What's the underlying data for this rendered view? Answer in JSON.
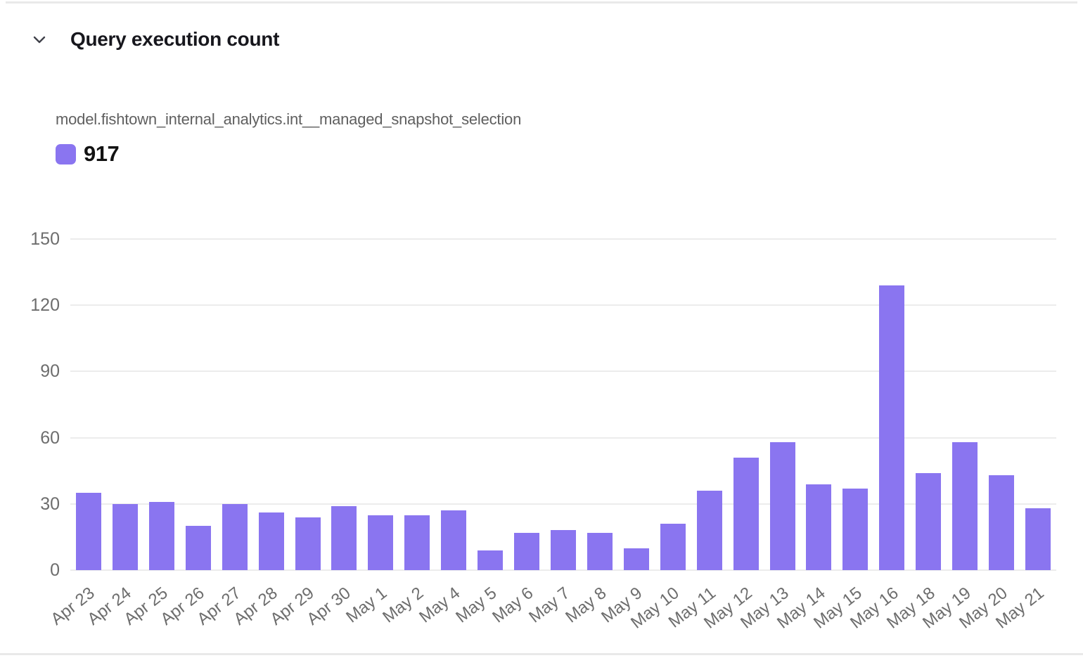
{
  "header": {
    "title": "Query execution count",
    "collapse_icon": "chevron-down-icon"
  },
  "legend": {
    "series_label": "model.fishtown_internal_analytics.int__managed_snapshot_selection",
    "value": "917",
    "swatch_color": "#8A75F0"
  },
  "colors": {
    "bar": "#8A75F0",
    "gridline": "#ececec",
    "axis_text": "#6d6d6d",
    "title_text": "#17171d",
    "subtitle_text": "#5f5f5f"
  },
  "chart_data": {
    "type": "bar",
    "title": "Query execution count",
    "series": [
      {
        "name": "model.fishtown_internal_analytics.int__managed_snapshot_selection",
        "total": 917,
        "values": [
          35,
          30,
          31,
          20,
          30,
          26,
          24,
          29,
          25,
          25,
          27,
          9,
          17,
          18,
          17,
          10,
          21,
          36,
          51,
          58,
          39,
          37,
          129,
          44,
          58,
          43,
          28
        ]
      }
    ],
    "categories": [
      "Apr 23",
      "Apr 24",
      "Apr 25",
      "Apr 26",
      "Apr 27",
      "Apr 28",
      "Apr 29",
      "Apr 30",
      "May 1",
      "May 2",
      "May 4",
      "May 5",
      "May 6",
      "May 7",
      "May 8",
      "May 9",
      "May 10",
      "May 11",
      "May 12",
      "May 13",
      "May 14",
      "May 15",
      "May 16",
      "May 18",
      "May 19",
      "May 20",
      "May 21"
    ],
    "xlabel": "",
    "ylabel": "",
    "ylim": [
      0,
      150
    ],
    "yticks": [
      0,
      30,
      60,
      90,
      120,
      150
    ],
    "grid": true,
    "legend_position": "top-left",
    "bar_color": "#8A75F0"
  }
}
